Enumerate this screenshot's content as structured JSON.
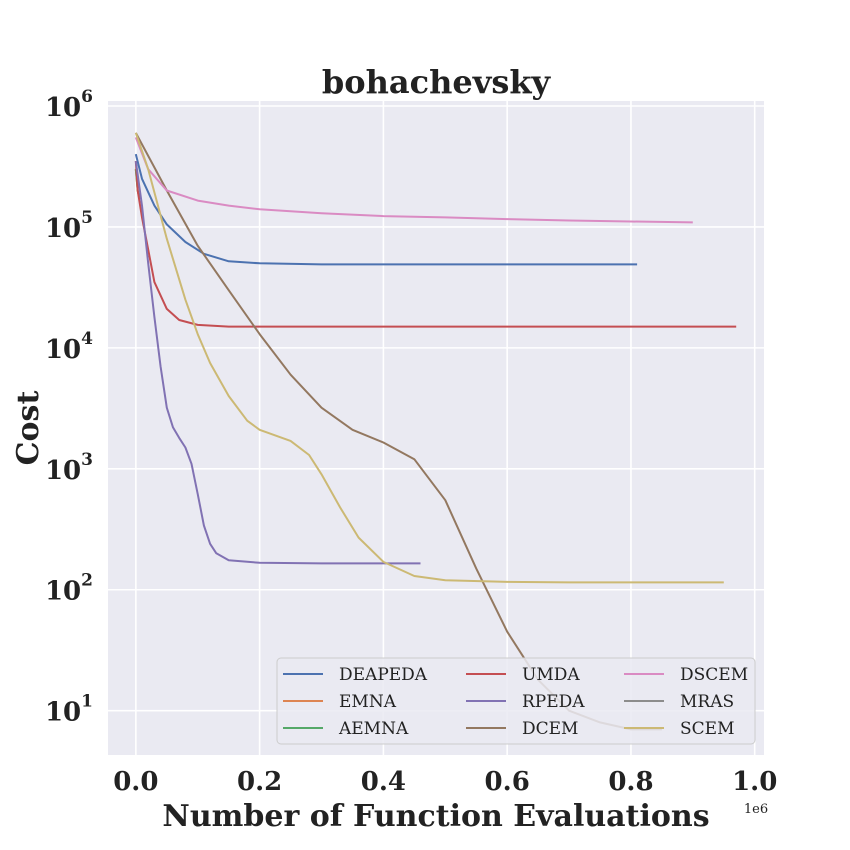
{
  "chart_data": {
    "type": "line",
    "title": "bohachevsky",
    "xlabel": "Number of Function Evaluations",
    "ylabel": "Cost",
    "x_offset_label": "1e6",
    "xscale": "linear",
    "yscale": "log",
    "xlim": [
      -0.045,
      1.015
    ],
    "ylim": [
      4.3,
      1100000
    ],
    "x_ticks": [
      0.0,
      0.2,
      0.4,
      0.6,
      0.8,
      1.0
    ],
    "x_tick_labels": [
      "0.0",
      "0.2",
      "0.4",
      "0.6",
      "0.8",
      "1.0"
    ],
    "y_ticks": [
      10,
      100,
      1000,
      10000,
      100000,
      1000000
    ],
    "y_tick_labels": [
      {
        "base": "10",
        "exp": "1"
      },
      {
        "base": "10",
        "exp": "2"
      },
      {
        "base": "10",
        "exp": "3"
      },
      {
        "base": "10",
        "exp": "4"
      },
      {
        "base": "10",
        "exp": "5"
      },
      {
        "base": "10",
        "exp": "6"
      }
    ],
    "grid": true,
    "legend_position": "lower-right",
    "legend_columns": 3,
    "series": [
      {
        "name": "DEAPEDA",
        "color": "#4c72b0",
        "x": [
          0.0,
          0.01,
          0.03,
          0.05,
          0.08,
          0.11,
          0.15,
          0.2,
          0.3,
          0.5,
          0.81
        ],
        "y": [
          400000,
          250000,
          150000,
          105000,
          75000,
          60000,
          52000,
          50000,
          49000,
          49000,
          49000
        ]
      },
      {
        "name": "EMNA",
        "color": "#dd8452",
        "x": [
          0.0,
          0.003,
          0.006
        ],
        "y": [
          300000,
          200000,
          170000
        ]
      },
      {
        "name": "AEMNA",
        "color": "#55a868",
        "x": [
          0.0,
          0.003,
          0.006
        ],
        "y": [
          300000,
          200000,
          170000
        ]
      },
      {
        "name": "UMDA",
        "color": "#c44e52",
        "x": [
          0.0,
          0.003,
          0.01,
          0.02,
          0.03,
          0.05,
          0.07,
          0.1,
          0.15,
          0.3,
          0.97
        ],
        "y": [
          350000,
          200000,
          120000,
          65000,
          35000,
          21000,
          17000,
          15500,
          15000,
          15000,
          15000
        ]
      },
      {
        "name": "RPEDA",
        "color": "#8172b3",
        "x": [
          0.0,
          0.01,
          0.02,
          0.03,
          0.04,
          0.05,
          0.06,
          0.07,
          0.08,
          0.09,
          0.1,
          0.11,
          0.12,
          0.13,
          0.15,
          0.2,
          0.3,
          0.46
        ],
        "y": [
          350000,
          150000,
          50000,
          18000,
          7000,
          3200,
          2200,
          1800,
          1500,
          1100,
          620,
          340,
          240,
          200,
          175,
          167,
          165,
          165
        ]
      },
      {
        "name": "DCEM",
        "color": "#937860",
        "x": [
          0.0,
          0.05,
          0.1,
          0.15,
          0.2,
          0.25,
          0.3,
          0.35,
          0.4,
          0.45,
          0.5,
          0.55,
          0.6,
          0.65,
          0.7,
          0.75,
          0.8,
          0.85
        ],
        "y": [
          600000,
          200000,
          70000,
          30000,
          13000,
          6000,
          3200,
          2100,
          1650,
          1200,
          550,
          150,
          45,
          18,
          10,
          8,
          7,
          7
        ]
      },
      {
        "name": "DSCEM",
        "color": "#da8bc3",
        "x": [
          0.0,
          0.02,
          0.05,
          0.1,
          0.15,
          0.2,
          0.3,
          0.4,
          0.5,
          0.6,
          0.7,
          0.8,
          0.9
        ],
        "y": [
          550000,
          300000,
          200000,
          165000,
          150000,
          140000,
          130000,
          123000,
          120000,
          116000,
          113000,
          111000,
          109000
        ]
      },
      {
        "name": "MRAS",
        "color": "#8c8c8c",
        "x": [],
        "y": []
      },
      {
        "name": "SCEM",
        "color": "#ccb974",
        "x": [
          0.0,
          0.02,
          0.05,
          0.08,
          0.1,
          0.12,
          0.15,
          0.18,
          0.2,
          0.25,
          0.28,
          0.3,
          0.33,
          0.36,
          0.4,
          0.45,
          0.5,
          0.6,
          0.7,
          0.8,
          0.95
        ],
        "y": [
          600000,
          300000,
          80000,
          25000,
          13000,
          7500,
          4000,
          2500,
          2100,
          1700,
          1300,
          900,
          480,
          270,
          170,
          130,
          120,
          116,
          115,
          115,
          115
        ]
      }
    ]
  }
}
